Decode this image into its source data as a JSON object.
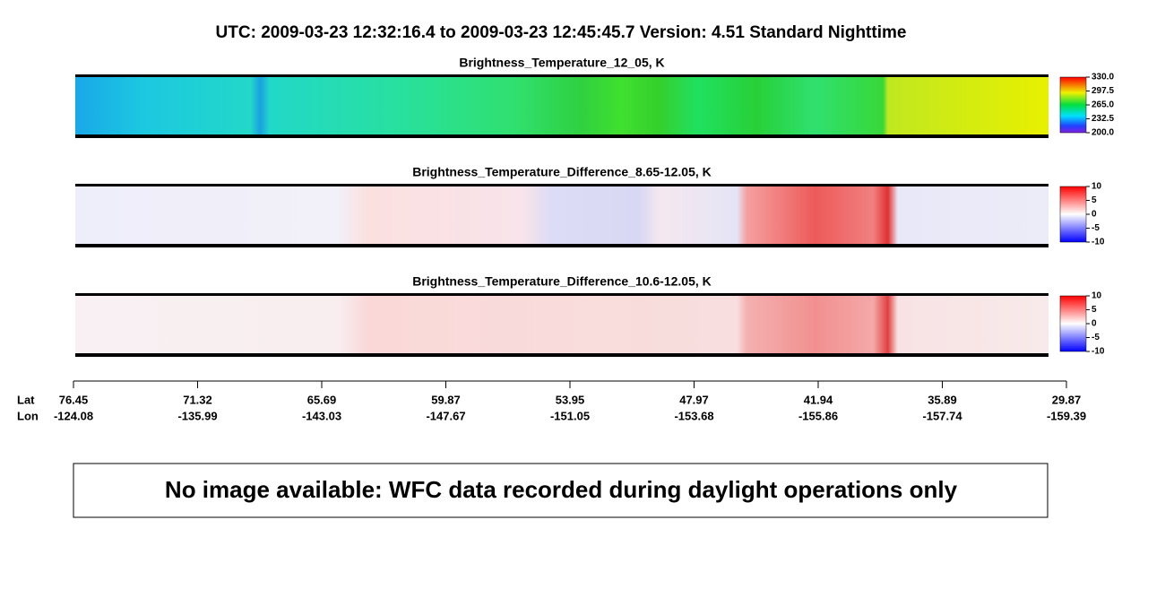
{
  "header": {
    "title": "UTC:  2009-03-23   12:32:16.4  to  2009-03-23   12:45:45.7    Version: 4.51  Standard Nighttime"
  },
  "panels": [
    {
      "title": "Brightness_Temperature_12_05, K",
      "colorbar_ticks": [
        {
          "value": 200,
          "label": "200.0"
        },
        {
          "value": 232.5,
          "label": "232.5"
        },
        {
          "value": 265,
          "label": "265.0"
        },
        {
          "value": 297.5,
          "label": "297.5"
        },
        {
          "value": 330,
          "label": "330.0"
        }
      ]
    },
    {
      "title": "Brightness_Temperature_Difference_8.65-12.05, K",
      "colorbar_ticks": [
        -10,
        -5,
        0,
        5,
        10
      ]
    },
    {
      "title": "Brightness_Temperature_Difference_10.6-12.05, K",
      "colorbar_ticks": [
        -10,
        -5,
        0,
        5,
        10
      ]
    }
  ],
  "track": {
    "lat_label": "Lat",
    "lon_label": "Lon",
    "lat": [
      76.45,
      71.32,
      65.69,
      59.87,
      53.95,
      47.97,
      41.94,
      35.89,
      29.87
    ],
    "lon": [
      -124.08,
      -135.99,
      -143.03,
      -147.67,
      -151.05,
      -153.68,
      -155.86,
      -157.74,
      -159.39
    ]
  },
  "message": "No image available: WFC data recorded during daylight operations only"
}
